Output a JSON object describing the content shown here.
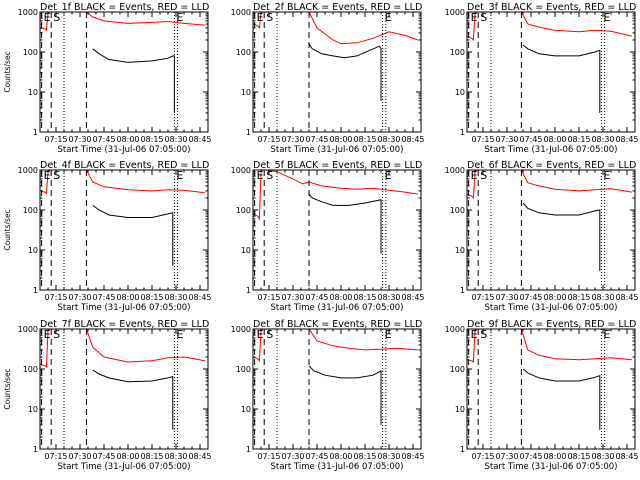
{
  "figure": {
    "background": "#ffffff",
    "axis_color": "#000000",
    "events_color": "#000000",
    "lld_color": "#ff0000"
  },
  "chart_data": [
    {
      "type": "line",
      "title": "Det_1f BLACK = Events, RED = LLD",
      "xlabel": "Start Time (31-Jul-06 07:05:00)",
      "ylabel": "Counts/sec",
      "yscale": "log",
      "ylim": [
        1,
        1000
      ],
      "xlim": [
        "07:05",
        "08:50"
      ],
      "xticks": [
        "07:15",
        "07:30",
        "07:45",
        "08:00",
        "08:15",
        "08:30",
        "08:45"
      ],
      "yticks": [
        "1",
        "10",
        "100",
        "1000"
      ],
      "markers": [
        {
          "label": "E",
          "time": "07:06",
          "style": "dashed"
        },
        {
          "label": "S",
          "time": "07:12",
          "style": "dashed"
        },
        {
          "time": "07:20",
          "style": "dotted"
        },
        {
          "time": "07:34",
          "style": "dashed"
        },
        {
          "label": "E",
          "time": "08:29",
          "style": "dotted"
        },
        {
          "time": "08:31",
          "style": "dotted"
        }
      ],
      "series": [
        {
          "name": "LLD",
          "color": "#ff0000",
          "x": [
            "07:05",
            "07:08",
            "07:09",
            "07:10",
            "07:11",
            "07:34",
            "07:38",
            "07:45",
            "08:00",
            "08:15",
            "08:25",
            "08:35",
            "08:48"
          ],
          "y": [
            400,
            380,
            350,
            900,
            1000,
            1000,
            750,
            600,
            520,
            550,
            580,
            520,
            470
          ]
        },
        {
          "name": "Events",
          "color": "#000000",
          "x": [
            "07:38",
            "07:42",
            "07:48",
            "08:00",
            "08:15",
            "08:25",
            "08:28",
            "08:29",
            "08:29"
          ],
          "y": [
            120,
            90,
            65,
            55,
            60,
            70,
            80,
            80,
            3
          ]
        }
      ]
    },
    {
      "type": "line",
      "title": "Det_2f BLACK = Events, RED = LLD",
      "xlabel": "Start Time (31-Jul-06 07:05:00)",
      "ylabel": "",
      "yscale": "log",
      "ylim": [
        1,
        1000
      ],
      "xlim": [
        "07:05",
        "08:50"
      ],
      "xticks": [
        "07:15",
        "07:30",
        "07:45",
        "08:00",
        "08:15",
        "08:30",
        "08:45"
      ],
      "yticks": [
        "1",
        "10",
        "100",
        "1000"
      ],
      "markers": [
        {
          "label": "E",
          "time": "07:06",
          "style": "dashed"
        },
        {
          "label": "S",
          "time": "07:12",
          "style": "dashed"
        },
        {
          "time": "07:20",
          "style": "dotted"
        },
        {
          "time": "07:40",
          "style": "dashed"
        },
        {
          "label": "E",
          "time": "08:26",
          "style": "dotted"
        },
        {
          "time": "08:28",
          "style": "dotted"
        }
      ],
      "series": [
        {
          "name": "LLD",
          "color": "#ff0000",
          "x": [
            "07:05",
            "07:08",
            "07:09",
            "07:10",
            "07:11",
            "07:40",
            "07:45",
            "07:55",
            "08:00",
            "08:10",
            "08:20",
            "08:30",
            "08:40",
            "08:48"
          ],
          "y": [
            500,
            450,
            400,
            950,
            1000,
            1000,
            400,
            200,
            160,
            170,
            220,
            320,
            260,
            200
          ]
        },
        {
          "name": "Events",
          "color": "#000000",
          "x": [
            "07:40",
            "07:42",
            "07:48",
            "07:55",
            "08:02",
            "08:10",
            "08:18",
            "08:24",
            "08:25",
            "08:25"
          ],
          "y": [
            160,
            120,
            90,
            80,
            72,
            80,
            110,
            140,
            120,
            6
          ]
        }
      ]
    },
    {
      "type": "line",
      "title": "Det_3f BLACK = Events, RED = LLD",
      "xlabel": "Start Time (31-Jul-06 07:05:00)",
      "ylabel": "",
      "yscale": "log",
      "ylim": [
        1,
        1000
      ],
      "xlim": [
        "07:05",
        "08:50"
      ],
      "xticks": [
        "07:15",
        "07:30",
        "07:45",
        "08:00",
        "08:15",
        "08:30",
        "08:45"
      ],
      "yticks": [
        "1",
        "10",
        "100",
        "1000"
      ],
      "markers": [
        {
          "label": "E",
          "time": "07:06",
          "style": "dashed"
        },
        {
          "label": "S",
          "time": "07:12",
          "style": "dashed"
        },
        {
          "time": "07:20",
          "style": "dotted"
        },
        {
          "time": "07:39",
          "style": "dashed"
        },
        {
          "label": "E",
          "time": "08:29",
          "style": "dotted"
        },
        {
          "time": "08:31",
          "style": "dotted"
        }
      ],
      "series": [
        {
          "name": "LLD",
          "color": "#ff0000",
          "x": [
            "07:05",
            "07:08",
            "07:09",
            "07:10",
            "07:11",
            "07:39",
            "07:43",
            "07:50",
            "08:00",
            "08:15",
            "08:25",
            "08:35",
            "08:48"
          ],
          "y": [
            250,
            220,
            200,
            900,
            1000,
            1000,
            500,
            420,
            350,
            320,
            350,
            330,
            250
          ]
        },
        {
          "name": "Events",
          "color": "#000000",
          "x": [
            "07:40",
            "07:43",
            "07:50",
            "08:00",
            "08:15",
            "08:25",
            "08:28",
            "08:28"
          ],
          "y": [
            150,
            120,
            90,
            80,
            80,
            100,
            110,
            3
          ]
        }
      ]
    },
    {
      "type": "line",
      "title": "Det_4f BLACK = Events, RED = LLD",
      "xlabel": "Start Time (31-Jul-06 07:05:00)",
      "ylabel": "Counts/sec",
      "yscale": "log",
      "ylim": [
        1,
        1000
      ],
      "xlim": [
        "07:05",
        "08:50"
      ],
      "xticks": [
        "07:15",
        "07:30",
        "07:45",
        "08:00",
        "08:15",
        "08:30",
        "08:45"
      ],
      "yticks": [
        "1",
        "10",
        "100",
        "1000"
      ],
      "markers": [
        {
          "label": "E",
          "time": "07:06",
          "style": "dashed"
        },
        {
          "label": "S",
          "time": "07:12",
          "style": "dashed"
        },
        {
          "time": "07:20",
          "style": "dotted"
        },
        {
          "time": "07:34",
          "style": "dashed"
        },
        {
          "label": "E",
          "time": "08:29",
          "style": "dotted"
        },
        {
          "time": "08:31",
          "style": "dotted"
        }
      ],
      "series": [
        {
          "name": "LLD",
          "color": "#ff0000",
          "x": [
            "07:05",
            "07:08",
            "07:09",
            "07:10",
            "07:11",
            "07:34",
            "07:38",
            "07:45",
            "08:00",
            "08:15",
            "08:25",
            "08:35",
            "08:48"
          ],
          "y": [
            300,
            280,
            260,
            900,
            1000,
            1000,
            500,
            380,
            320,
            300,
            320,
            310,
            270
          ]
        },
        {
          "name": "Events",
          "color": "#000000",
          "x": [
            "07:38",
            "07:42",
            "07:48",
            "08:00",
            "08:15",
            "08:25",
            "08:28",
            "08:28"
          ],
          "y": [
            130,
            100,
            75,
            65,
            65,
            80,
            85,
            4
          ]
        }
      ]
    },
    {
      "type": "line",
      "title": "Det_5f BLACK = Events, RED = LLD",
      "xlabel": "Start Time (31-Jul-06 07:05:00)",
      "ylabel": "",
      "yscale": "log",
      "ylim": [
        1,
        1000
      ],
      "xlim": [
        "07:05",
        "08:50"
      ],
      "xticks": [
        "07:15",
        "07:30",
        "07:45",
        "08:00",
        "08:15",
        "08:30",
        "08:45"
      ],
      "yticks": [
        "1",
        "10",
        "100",
        "1000"
      ],
      "markers": [
        {
          "label": "E",
          "time": "07:06",
          "style": "dashed"
        },
        {
          "label": "S",
          "time": "07:12",
          "style": "dashed"
        },
        {
          "time": "07:20",
          "style": "dotted"
        },
        {
          "time": "07:40",
          "style": "dashed"
        },
        {
          "label": "E",
          "time": "08:26",
          "style": "dotted"
        },
        {
          "time": "08:28",
          "style": "dotted"
        }
      ],
      "series": [
        {
          "name": "LLD",
          "color": "#ff0000",
          "x": [
            "07:05",
            "07:08",
            "07:09",
            "07:10",
            "07:11",
            "07:14",
            "07:20",
            "07:30",
            "07:36",
            "07:40",
            "07:48",
            "08:00",
            "08:10",
            "08:20",
            "08:30",
            "08:40",
            "08:48"
          ],
          "y": [
            80,
            70,
            60,
            900,
            1000,
            1000,
            900,
            600,
            450,
            500,
            400,
            350,
            330,
            350,
            310,
            280,
            250
          ]
        },
        {
          "name": "Events",
          "color": "#000000",
          "x": [
            "07:40",
            "07:42",
            "07:48",
            "07:55",
            "08:05",
            "08:15",
            "08:22",
            "08:25",
            "08:25"
          ],
          "y": [
            250,
            200,
            160,
            130,
            130,
            150,
            170,
            180,
            8
          ]
        }
      ]
    },
    {
      "type": "line",
      "title": "Det_6f BLACK = Events, RED = LLD",
      "xlabel": "Start Time (31-Jul-06 07:05:00)",
      "ylabel": "",
      "yscale": "log",
      "ylim": [
        1,
        1000
      ],
      "xlim": [
        "07:05",
        "08:50"
      ],
      "xticks": [
        "07:15",
        "07:30",
        "07:45",
        "08:00",
        "08:15",
        "08:30",
        "08:45"
      ],
      "yticks": [
        "1",
        "10",
        "100",
        "1000"
      ],
      "markers": [
        {
          "label": "E",
          "time": "07:06",
          "style": "dashed"
        },
        {
          "label": "S",
          "time": "07:12",
          "style": "dashed"
        },
        {
          "time": "07:20",
          "style": "dotted"
        },
        {
          "time": "07:39",
          "style": "dashed"
        },
        {
          "label": "E",
          "time": "08:29",
          "style": "dotted"
        },
        {
          "time": "08:31",
          "style": "dotted"
        }
      ],
      "series": [
        {
          "name": "LLD",
          "color": "#ff0000",
          "x": [
            "07:05",
            "07:08",
            "07:09",
            "07:10",
            "07:11",
            "07:39",
            "07:43",
            "07:50",
            "08:00",
            "08:15",
            "08:25",
            "08:35",
            "08:48"
          ],
          "y": [
            250,
            220,
            200,
            900,
            1000,
            1000,
            480,
            400,
            330,
            300,
            320,
            340,
            280
          ]
        },
        {
          "name": "Events",
          "color": "#000000",
          "x": [
            "07:40",
            "07:43",
            "07:50",
            "08:00",
            "08:15",
            "08:25",
            "08:28",
            "08:28"
          ],
          "y": [
            150,
            110,
            85,
            75,
            75,
            95,
            100,
            3
          ]
        }
      ]
    },
    {
      "type": "line",
      "title": "Det_7f BLACK = Events, RED = LLD",
      "xlabel": "Start Time (31-Jul-06 07:05:00)",
      "ylabel": "Counts/sec",
      "yscale": "log",
      "ylim": [
        1,
        1000
      ],
      "xlim": [
        "07:05",
        "08:50"
      ],
      "xticks": [
        "07:15",
        "07:30",
        "07:45",
        "08:00",
        "08:15",
        "08:30",
        "08:45"
      ],
      "yticks": [
        "1",
        "10",
        "100",
        "1000"
      ],
      "markers": [
        {
          "label": "E",
          "time": "07:06",
          "style": "dashed"
        },
        {
          "label": "S",
          "time": "07:12",
          "style": "dashed"
        },
        {
          "time": "07:20",
          "style": "dotted"
        },
        {
          "time": "07:34",
          "style": "dashed"
        },
        {
          "label": "E",
          "time": "08:29",
          "style": "dotted"
        },
        {
          "time": "08:31",
          "style": "dotted"
        }
      ],
      "series": [
        {
          "name": "LLD",
          "color": "#ff0000",
          "x": [
            "07:05",
            "07:08",
            "07:09",
            "07:10",
            "07:11",
            "07:34",
            "07:38",
            "07:45",
            "08:00",
            "08:15",
            "08:25",
            "08:35",
            "08:48"
          ],
          "y": [
            130,
            120,
            110,
            900,
            1000,
            1000,
            350,
            200,
            150,
            160,
            190,
            200,
            160
          ]
        },
        {
          "name": "Events",
          "color": "#000000",
          "x": [
            "07:38",
            "07:42",
            "07:48",
            "08:00",
            "08:15",
            "08:25",
            "08:28",
            "08:28"
          ],
          "y": [
            95,
            75,
            60,
            48,
            50,
            60,
            65,
            3
          ]
        }
      ]
    },
    {
      "type": "line",
      "title": "Det_8f BLACK = Events, RED = LLD",
      "xlabel": "Start Time (31-Jul-06 07:05:00)",
      "ylabel": "",
      "yscale": "log",
      "ylim": [
        1,
        1000
      ],
      "xlim": [
        "07:05",
        "08:50"
      ],
      "xticks": [
        "07:15",
        "07:30",
        "07:45",
        "08:00",
        "08:15",
        "08:30",
        "08:45"
      ],
      "yticks": [
        "1",
        "10",
        "100",
        "1000"
      ],
      "markers": [
        {
          "label": "E",
          "time": "07:06",
          "style": "dashed"
        },
        {
          "label": "S",
          "time": "07:12",
          "style": "dashed"
        },
        {
          "time": "07:20",
          "style": "dotted"
        },
        {
          "time": "07:40",
          "style": "dashed"
        },
        {
          "label": "E",
          "time": "08:26",
          "style": "dotted"
        },
        {
          "time": "08:28",
          "style": "dotted"
        }
      ],
      "series": [
        {
          "name": "LLD",
          "color": "#ff0000",
          "x": [
            "07:05",
            "07:08",
            "07:09",
            "07:10",
            "07:11",
            "07:40",
            "07:45",
            "07:55",
            "08:05",
            "08:15",
            "08:25",
            "08:35",
            "08:48"
          ],
          "y": [
            200,
            180,
            160,
            900,
            1000,
            1000,
            500,
            380,
            330,
            300,
            310,
            330,
            300
          ]
        },
        {
          "name": "Events",
          "color": "#000000",
          "x": [
            "07:40",
            "07:43",
            "07:50",
            "08:00",
            "08:10",
            "08:20",
            "08:24",
            "08:25",
            "08:25"
          ],
          "y": [
            120,
            90,
            70,
            60,
            60,
            70,
            85,
            90,
            4
          ]
        }
      ]
    },
    {
      "type": "line",
      "title": "Det_9f BLACK = Events, RED = LLD",
      "xlabel": "Start Time (31-Jul-06 07:05:00)",
      "ylabel": "",
      "yscale": "log",
      "ylim": [
        1,
        1000
      ],
      "xlim": [
        "07:05",
        "08:50"
      ],
      "xticks": [
        "07:15",
        "07:30",
        "07:45",
        "08:00",
        "08:15",
        "08:30",
        "08:45"
      ],
      "yticks": [
        "1",
        "10",
        "100",
        "1000"
      ],
      "markers": [
        {
          "label": "E",
          "time": "07:06",
          "style": "dashed"
        },
        {
          "label": "S",
          "time": "07:12",
          "style": "dashed"
        },
        {
          "time": "07:20",
          "style": "dotted"
        },
        {
          "time": "07:39",
          "style": "dashed"
        },
        {
          "label": "E",
          "time": "08:29",
          "style": "dotted"
        },
        {
          "time": "08:31",
          "style": "dotted"
        }
      ],
      "series": [
        {
          "name": "LLD",
          "color": "#ff0000",
          "x": [
            "07:05",
            "07:08",
            "07:09",
            "07:10",
            "07:11",
            "07:39",
            "07:43",
            "07:50",
            "08:00",
            "08:15",
            "08:25",
            "08:35",
            "08:48"
          ],
          "y": [
            170,
            160,
            150,
            900,
            1000,
            1000,
            300,
            220,
            180,
            170,
            180,
            190,
            170
          ]
        },
        {
          "name": "Events",
          "color": "#000000",
          "x": [
            "07:40",
            "07:43",
            "07:50",
            "08:00",
            "08:15",
            "08:25",
            "08:28",
            "08:28"
          ],
          "y": [
            100,
            80,
            60,
            50,
            50,
            62,
            68,
            3
          ]
        }
      ]
    }
  ]
}
